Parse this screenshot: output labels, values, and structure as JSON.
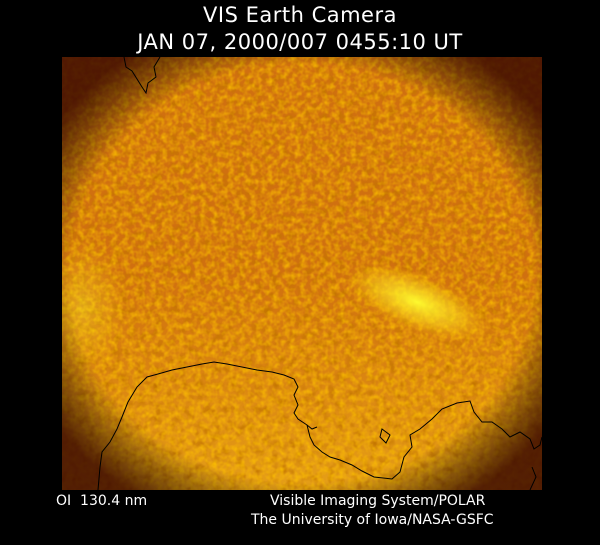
{
  "header": {
    "title": "VIS Earth Camera",
    "timestamp": "JAN 07, 2000/007 0455:10 UT"
  },
  "image": {
    "description_colors": {
      "dark": "#6a1e00",
      "mid": "#d8780c",
      "bright": "#ffee20"
    }
  },
  "footer": {
    "band_label": "OI  130.4 nm",
    "credit_line1": "Visible Imaging System/POLAR",
    "credit_line2": "The University of Iowa/NASA-GSFC"
  }
}
